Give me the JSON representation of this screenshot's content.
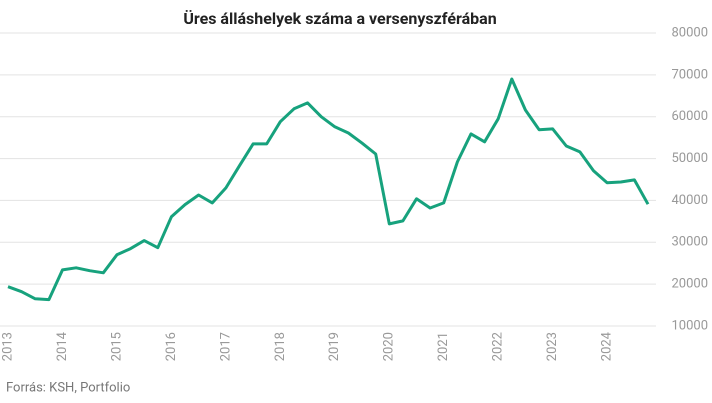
{
  "chart_data": {
    "type": "line",
    "title": "Üres álláshelyek száma a versenyszférában",
    "source": "Forrás: KSH, Portfolio",
    "categories": [
      "2013",
      null,
      null,
      null,
      "2014",
      null,
      null,
      null,
      "2015",
      null,
      null,
      null,
      "2016",
      null,
      null,
      null,
      "2017",
      null,
      null,
      null,
      "2018",
      null,
      null,
      null,
      "2019",
      null,
      null,
      null,
      "2020",
      null,
      null,
      null,
      "2021",
      null,
      null,
      null,
      "2022",
      null,
      null,
      null,
      "2023",
      null,
      null,
      null,
      "2024",
      null,
      null,
      null
    ],
    "series": [
      {
        "color": "#17a27d",
        "values": [
          19400,
          18200,
          16500,
          16300,
          23400,
          23900,
          23200,
          22700,
          27000,
          28500,
          30400,
          28700,
          36100,
          39000,
          41300,
          39400,
          43000,
          48300,
          53500,
          53500,
          58800,
          61900,
          63300,
          60000,
          57600,
          56100,
          53700,
          51100,
          34400,
          35100,
          40400,
          38200,
          39400,
          49200,
          55900,
          54000,
          59500,
          69000,
          61600,
          56900,
          57100,
          53000,
          51600,
          47100,
          44200,
          44400,
          44900,
          39100
        ]
      }
    ],
    "ylim": [
      10000,
      80000
    ],
    "yticks": [
      10000,
      20000,
      30000,
      40000,
      50000,
      60000,
      70000,
      80000
    ],
    "grid": true
  }
}
